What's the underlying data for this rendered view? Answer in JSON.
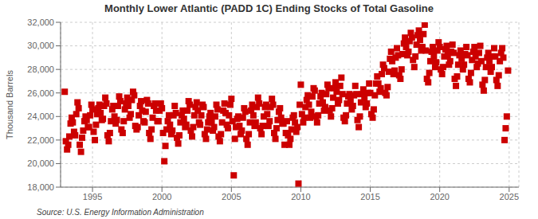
{
  "chart_data": {
    "type": "scatter",
    "title": "Monthly Lower Atlantic (PADD 1C) Ending Stocks of Total Gasoline",
    "ylabel": "Thousand Barrels",
    "source": "Source: U.S. Energy Information Administration",
    "color": "#CC0000",
    "marker": "square",
    "grid": true,
    "xlim": [
      1992.7,
      2025.7
    ],
    "xticks": [
      1995,
      2000,
      2005,
      2010,
      2015,
      2020,
      2025
    ],
    "ylim": [
      18000,
      32000
    ],
    "yticks": [
      {
        "value": 18000,
        "label": "18,000"
      },
      {
        "value": 20000,
        "label": "20,000"
      },
      {
        "value": 22000,
        "label": "22,000"
      },
      {
        "value": 24000,
        "label": "24,000"
      },
      {
        "value": 26000,
        "label": "26,000"
      },
      {
        "value": 28000,
        "label": "28,000"
      },
      {
        "value": 30000,
        "label": "30,000"
      },
      {
        "value": 32000,
        "label": "32,000"
      }
    ],
    "x": [
      1993.0,
      1993.08,
      1993.17,
      1993.25,
      1993.33,
      1993.42,
      1993.5,
      1993.58,
      1993.67,
      1993.75,
      1993.83,
      1993.92,
      1994.0,
      1994.08,
      1994.17,
      1994.25,
      1994.33,
      1994.42,
      1994.5,
      1994.58,
      1994.67,
      1994.75,
      1994.83,
      1994.92,
      1995.0,
      1995.08,
      1995.17,
      1995.25,
      1995.33,
      1995.42,
      1995.5,
      1995.58,
      1995.67,
      1995.75,
      1995.83,
      1995.92,
      1996.0,
      1996.08,
      1996.17,
      1996.25,
      1996.33,
      1996.42,
      1996.5,
      1996.58,
      1996.67,
      1996.75,
      1996.83,
      1996.92,
      1997.0,
      1997.08,
      1997.17,
      1997.25,
      1997.33,
      1997.42,
      1997.5,
      1997.58,
      1997.67,
      1997.75,
      1997.83,
      1997.92,
      1998.0,
      1998.08,
      1998.17,
      1998.25,
      1998.33,
      1998.42,
      1998.5,
      1998.58,
      1998.67,
      1998.75,
      1998.83,
      1998.92,
      1999.0,
      1999.08,
      1999.17,
      1999.25,
      1999.33,
      1999.42,
      1999.5,
      1999.58,
      1999.67,
      1999.75,
      1999.83,
      1999.92,
      2000.0,
      2000.08,
      2000.17,
      2000.25,
      2000.33,
      2000.42,
      2000.5,
      2000.58,
      2000.67,
      2000.75,
      2000.83,
      2000.92,
      2001.0,
      2001.08,
      2001.17,
      2001.25,
      2001.33,
      2001.42,
      2001.5,
      2001.58,
      2001.67,
      2001.75,
      2001.83,
      2001.92,
      2002.0,
      2002.08,
      2002.17,
      2002.25,
      2002.33,
      2002.42,
      2002.5,
      2002.58,
      2002.67,
      2002.75,
      2002.83,
      2002.92,
      2003.0,
      2003.08,
      2003.17,
      2003.25,
      2003.33,
      2003.42,
      2003.5,
      2003.58,
      2003.67,
      2003.75,
      2003.83,
      2003.92,
      2004.0,
      2004.08,
      2004.17,
      2004.25,
      2004.33,
      2004.42,
      2004.5,
      2004.58,
      2004.67,
      2004.75,
      2004.83,
      2004.92,
      2005.0,
      2005.08,
      2005.17,
      2005.25,
      2005.33,
      2005.42,
      2005.5,
      2005.58,
      2005.67,
      2005.75,
      2005.83,
      2005.92,
      2006.0,
      2006.08,
      2006.17,
      2006.25,
      2006.33,
      2006.42,
      2006.5,
      2006.58,
      2006.67,
      2006.75,
      2006.83,
      2006.92,
      2007.0,
      2007.08,
      2007.17,
      2007.25,
      2007.33,
      2007.42,
      2007.5,
      2007.58,
      2007.67,
      2007.75,
      2007.83,
      2007.92,
      2008.0,
      2008.08,
      2008.17,
      2008.25,
      2008.33,
      2008.42,
      2008.5,
      2008.58,
      2008.67,
      2008.75,
      2008.83,
      2008.92,
      2009.0,
      2009.08,
      2009.17,
      2009.25,
      2009.33,
      2009.42,
      2009.5,
      2009.58,
      2009.67,
      2009.75,
      2009.83,
      2009.92,
      2010.0,
      2010.08,
      2010.17,
      2010.25,
      2010.33,
      2010.42,
      2010.5,
      2010.58,
      2010.67,
      2010.75,
      2010.83,
      2010.92,
      2011.0,
      2011.08,
      2011.17,
      2011.25,
      2011.33,
      2011.42,
      2011.5,
      2011.58,
      2011.67,
      2011.75,
      2011.83,
      2011.92,
      2012.0,
      2012.08,
      2012.17,
      2012.25,
      2012.33,
      2012.42,
      2012.5,
      2012.58,
      2012.67,
      2012.75,
      2012.83,
      2012.92,
      2013.0,
      2013.08,
      2013.17,
      2013.25,
      2013.33,
      2013.42,
      2013.5,
      2013.58,
      2013.67,
      2013.75,
      2013.83,
      2013.92,
      2014.0,
      2014.08,
      2014.17,
      2014.25,
      2014.33,
      2014.42,
      2014.5,
      2014.58,
      2014.67,
      2014.75,
      2014.83,
      2014.92,
      2015.0,
      2015.08,
      2015.17,
      2015.25,
      2015.33,
      2015.42,
      2015.5,
      2015.58,
      2015.67,
      2015.75,
      2015.83,
      2015.92,
      2016.0,
      2016.08,
      2016.17,
      2016.25,
      2016.33,
      2016.42,
      2016.5,
      2016.58,
      2016.67,
      2016.75,
      2016.83,
      2016.92,
      2017.0,
      2017.08,
      2017.17,
      2017.25,
      2017.33,
      2017.42,
      2017.5,
      2017.58,
      2017.67,
      2017.75,
      2017.83,
      2017.92,
      2018.0,
      2018.08,
      2018.17,
      2018.25,
      2018.33,
      2018.42,
      2018.5,
      2018.58,
      2018.67,
      2018.75,
      2018.83,
      2018.92,
      2019.0,
      2019.08,
      2019.17,
      2019.25,
      2019.33,
      2019.42,
      2019.5,
      2019.58,
      2019.67,
      2019.75,
      2019.83,
      2019.92,
      2020.0,
      2020.08,
      2020.17,
      2020.25,
      2020.33,
      2020.42,
      2020.5,
      2020.58,
      2020.67,
      2020.75,
      2020.83,
      2020.92,
      2021.0,
      2021.08,
      2021.17,
      2021.25,
      2021.33,
      2021.42,
      2021.5,
      2021.58,
      2021.67,
      2021.75,
      2021.83,
      2021.92,
      2022.0,
      2022.08,
      2022.17,
      2022.25,
      2022.33,
      2022.42,
      2022.5,
      2022.58,
      2022.67,
      2022.75,
      2022.83,
      2022.92,
      2023.0,
      2023.08,
      2023.17,
      2023.25,
      2023.33,
      2023.42,
      2023.5,
      2023.58,
      2023.67,
      2023.75,
      2023.83,
      2023.92,
      2024.0,
      2024.08,
      2024.17,
      2024.25,
      2024.33,
      2024.42,
      2024.5,
      2024.58,
      2024.67,
      2024.75,
      2024.83,
      2024.92
    ],
    "values": [
      26100,
      21900,
      21200,
      21600,
      22300,
      23400,
      23900,
      23500,
      22700,
      22400,
      24200,
      25200,
      24700,
      21600,
      21000,
      22200,
      22800,
      23600,
      24000,
      23700,
      23100,
      23100,
      24100,
      25000,
      24600,
      22700,
      22000,
      23300,
      24200,
      24700,
      25000,
      24300,
      23700,
      23800,
      24900,
      25600,
      25100,
      22400,
      21900,
      22600,
      23600,
      24600,
      24900,
      24000,
      23400,
      23700,
      24900,
      25700,
      25300,
      22900,
      22600,
      23600,
      24600,
      25100,
      25600,
      24900,
      23900,
      24200,
      25400,
      26100,
      25800,
      23200,
      22900,
      23100,
      24100,
      24900,
      25300,
      24500,
      23600,
      23500,
      24400,
      25400,
      25100,
      22600,
      22100,
      22900,
      23900,
      24900,
      25100,
      24500,
      23600,
      23600,
      24500,
      25100,
      24700,
      22600,
      20200,
      21500,
      22900,
      23600,
      24100,
      23300,
      22500,
      22800,
      24100,
      24900,
      24300,
      22200,
      21700,
      22400,
      23500,
      24100,
      24500,
      23800,
      23100,
      23300,
      24500,
      25300,
      25000,
      22800,
      22300,
      23100,
      24100,
      24800,
      25200,
      24500,
      23500,
      23300,
      24100,
      25000,
      24800,
      22500,
      22100,
      22900,
      23500,
      24000,
      24300,
      23500,
      22800,
      23100,
      24000,
      25000,
      24600,
      22300,
      21900,
      22500,
      23500,
      24500,
      25100,
      24300,
      23300,
      23000,
      24100,
      25000,
      25500,
      23600,
      19000,
      22100,
      23100,
      23800,
      24000,
      23200,
      22500,
      22800,
      23900,
      24700,
      24400,
      22100,
      21600,
      22500,
      23500,
      24500,
      25000,
      24100,
      23200,
      23500,
      24800,
      25600,
      25100,
      23000,
      22500,
      23200,
      24000,
      24800,
      25000,
      24200,
      23200,
      23600,
      24800,
      25500,
      25000,
      22600,
      22100,
      23000,
      23700,
      24400,
      24700,
      23900,
      23400,
      23400,
      21600,
      22600,
      23600,
      22400,
      21600,
      22100,
      22900,
      23900,
      24100,
      23500,
      22700,
      23100,
      18300,
      25000,
      26700,
      24200,
      23500,
      23900,
      24800,
      25400,
      25800,
      25000,
      23900,
      24400,
      25700,
      26400,
      26200,
      24000,
      23500,
      24100,
      25100,
      25700,
      26000,
      25200,
      24500,
      24800,
      25900,
      26700,
      26400,
      24500,
      24000,
      24700,
      25600,
      26400,
      26900,
      26100,
      25100,
      25400,
      26600,
      27300,
      25900,
      23900,
      23600,
      24100,
      25100,
      25700,
      25900,
      25300,
      24600,
      24900,
      25800,
      26600,
      25900,
      23700,
      23100,
      24000,
      25200,
      25900,
      26300,
      25600,
      24800,
      25100,
      26000,
      26800,
      26000,
      24200,
      23900,
      24600,
      25800,
      26800,
      27400,
      26800,
      26100,
      26400,
      27600,
      28400,
      28100,
      26000,
      25800,
      26500,
      27800,
      28900,
      29500,
      28700,
      27600,
      27900,
      29000,
      29800,
      29200,
      27500,
      27200,
      28000,
      29300,
      30200,
      30700,
      29900,
      29200,
      29500,
      30400,
      31100,
      30700,
      28800,
      28200,
      29100,
      30100,
      30900,
      31300,
      30500,
      29600,
      29900,
      31000,
      31800,
      29600,
      27200,
      26900,
      27700,
      28700,
      29500,
      29900,
      29100,
      28200,
      28600,
      29600,
      30300,
      29900,
      28000,
      27600,
      28200,
      29100,
      29700,
      30000,
      29200,
      28400,
      28700,
      29500,
      30100,
      29400,
      27200,
      26600,
      27400,
      28400,
      29200,
      29600,
      28900,
      28000,
      28400,
      29300,
      29900,
      29200,
      27200,
      26900,
      27700,
      28800,
      29500,
      29900,
      29100,
      28200,
      28500,
      29400,
      30000,
      28700,
      26700,
      26200,
      27100,
      28200,
      29000,
      29400,
      28700,
      27800,
      28200,
      29100,
      29800,
      29100,
      27100,
      26600,
      27500,
      28700,
      29400,
      29800,
      29000,
      22000,
      23000,
      24000,
      27900
    ]
  }
}
